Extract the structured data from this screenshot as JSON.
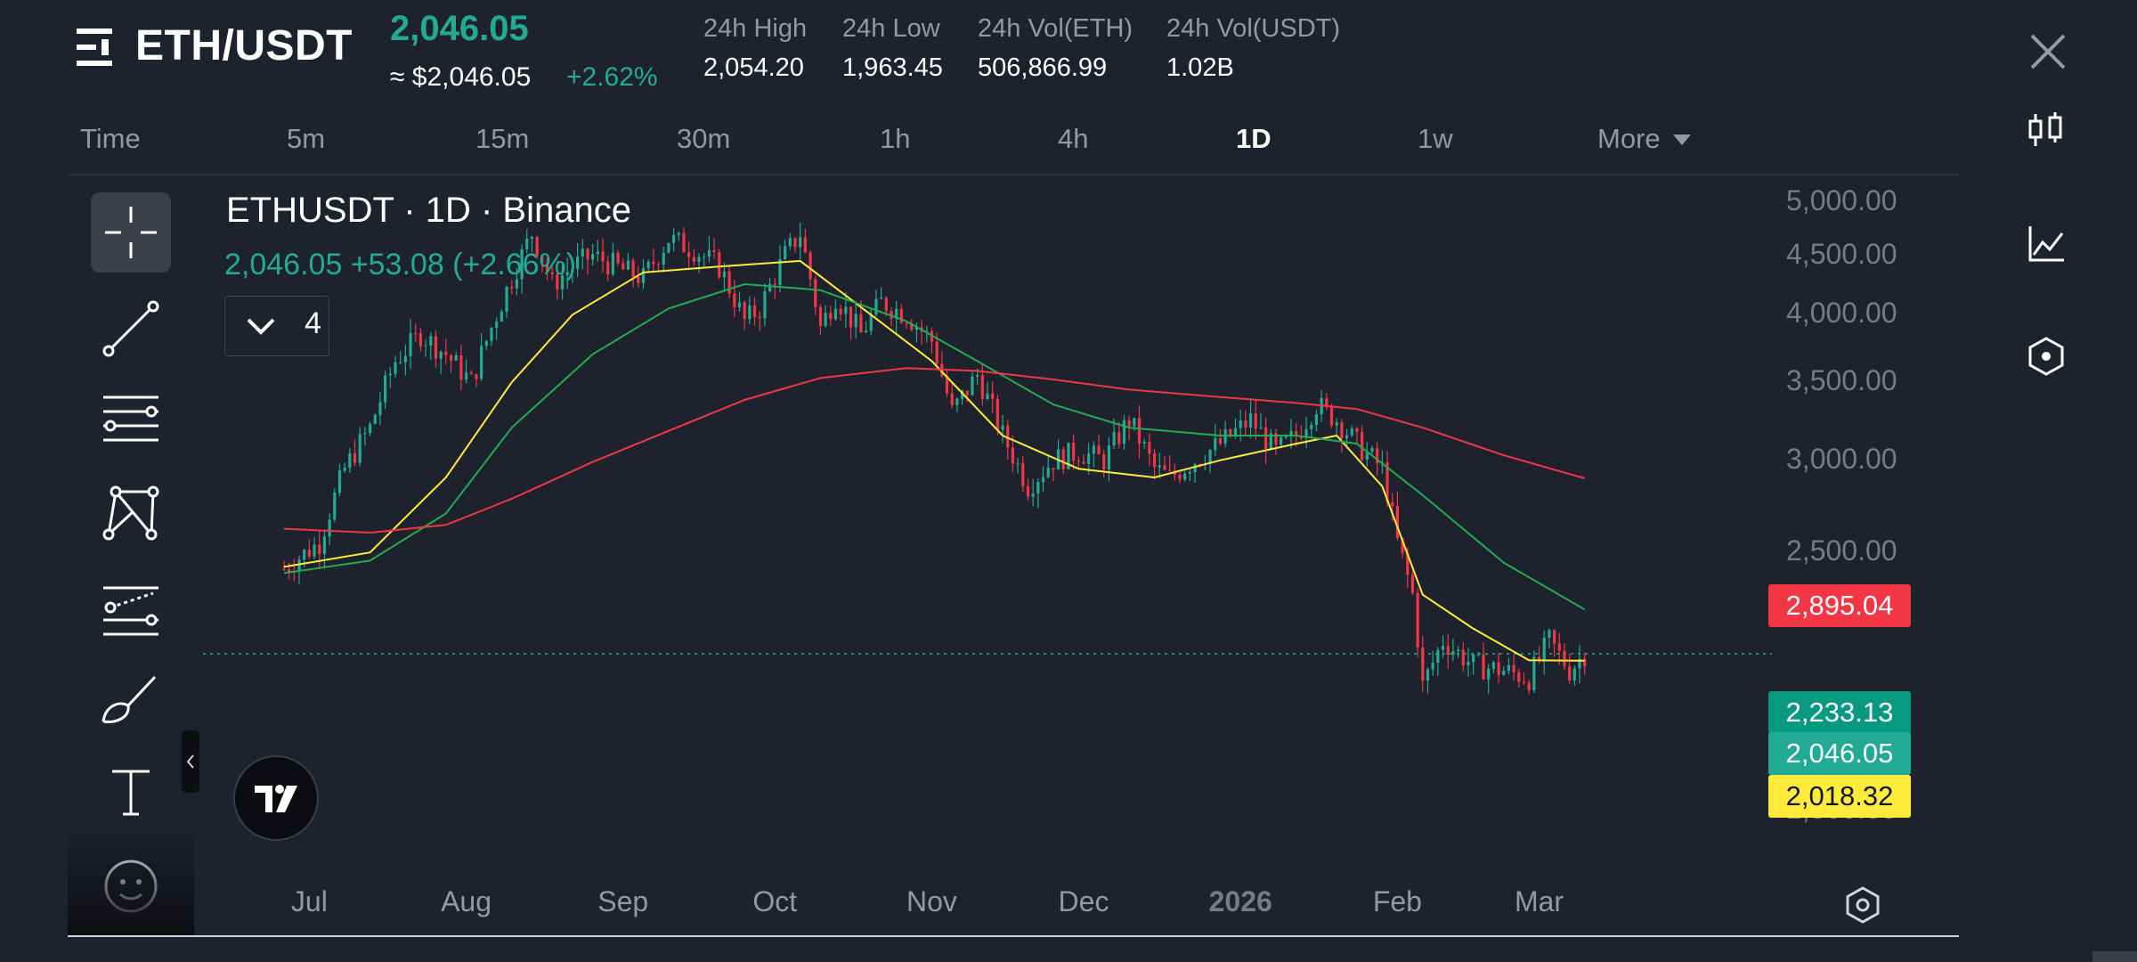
{
  "header": {
    "pair": "ETH/USDT",
    "price": "2,046.05",
    "price_usd": "≈ $2,046.05",
    "change": "+2.62%",
    "stats": [
      {
        "label": "24h High",
        "value": "2,054.20"
      },
      {
        "label": "24h Low",
        "value": "1,963.45"
      },
      {
        "label": "24h Vol(ETH)",
        "value": "506,866.99"
      },
      {
        "label": "24h Vol(USDT)",
        "value": "1.02B"
      }
    ]
  },
  "intervals": [
    "Time",
    "5m",
    "15m",
    "30m",
    "1h",
    "4h",
    "1D",
    "1w",
    "More"
  ],
  "active_interval": "1D",
  "chart": {
    "title": "ETHUSDT · 1D · Binance",
    "legend_price": "2,046.05  +53.08 (+2.66%)",
    "indicator_count": "4"
  },
  "toolbar": [
    "crosshair-tool",
    "trendline-tool",
    "fib-retracement-tool",
    "pattern-tool",
    "projection-tool",
    "brush-tool",
    "text-tool",
    "emoji-tool"
  ],
  "colors": {
    "up": "#22ab94",
    "down": "#f23645",
    "ma_short": "#ffeb3b",
    "ma_mid": "#22ab50",
    "ma_long": "#f23645",
    "background": "#1e222d"
  },
  "chart_data": {
    "type": "line",
    "title": "ETHUSDT · 1D · Binance",
    "y_ticks": [
      "5,000.00",
      "4,500.00",
      "4,000.00",
      "3,500.00",
      "3,000.00",
      "2,500.00",
      "1,500.00"
    ],
    "ylim": [
      1350,
      5150
    ],
    "x_ticks": [
      "Jul",
      "Aug",
      "Sep",
      "Oct",
      "Nov",
      "Dec",
      "2026",
      "Feb",
      "Mar"
    ],
    "x_tick_dates": [
      "2025-07-01",
      "2025-08-01",
      "2025-09-01",
      "2025-10-01",
      "2025-11-01",
      "2025-12-01",
      "2026-01-01",
      "2026-02-01",
      "2026-03-01"
    ],
    "grid": false,
    "price_series": {
      "dates": [
        "2025-06-26",
        "2025-07-03",
        "2025-07-08",
        "2025-07-13",
        "2025-07-18",
        "2025-07-23",
        "2025-07-28",
        "2025-08-02",
        "2025-08-05",
        "2025-08-10",
        "2025-08-14",
        "2025-08-18",
        "2025-08-22",
        "2025-08-26",
        "2025-09-01",
        "2025-09-05",
        "2025-09-10",
        "2025-09-15",
        "2025-09-20",
        "2025-09-25",
        "2025-09-28",
        "2025-10-03",
        "2025-10-06",
        "2025-10-10",
        "2025-10-13",
        "2025-10-18",
        "2025-10-22",
        "2025-10-27",
        "2025-11-01",
        "2025-11-05",
        "2025-11-10",
        "2025-11-15",
        "2025-11-20",
        "2025-11-25",
        "2025-11-30",
        "2025-12-05",
        "2025-12-10",
        "2025-12-15",
        "2025-12-18",
        "2025-12-23",
        "2025-12-28",
        "2026-01-03",
        "2026-01-08",
        "2026-01-12",
        "2026-01-16",
        "2026-01-20",
        "2026-01-24",
        "2026-01-29",
        "2026-02-01",
        "2026-02-04",
        "2026-02-06",
        "2026-02-10",
        "2026-02-16",
        "2026-02-22",
        "2026-02-27",
        "2026-03-03",
        "2026-03-07",
        "2026-03-10"
      ],
      "close": [
        2420,
        2550,
        2950,
        3200,
        3650,
        3850,
        3700,
        3500,
        3800,
        4300,
        4700,
        4250,
        4400,
        4500,
        4370,
        4300,
        4650,
        4550,
        4400,
        3950,
        4050,
        4500,
        4700,
        3900,
        4150,
        3850,
        4100,
        4000,
        3800,
        3300,
        3550,
        3150,
        2850,
        3000,
        3050,
        3000,
        3250,
        2950,
        2900,
        3000,
        3100,
        3250,
        3050,
        3150,
        3350,
        3250,
        3100,
        2950,
        2550,
        2300,
        1920,
        2100,
        2000,
        1980,
        1950,
        2100,
        1980,
        2046
      ]
    },
    "series": [
      {
        "key": "ma_short",
        "values_dates": [
          "2025-06-26",
          "2025-07-13",
          "2025-07-28",
          "2025-08-10",
          "2025-08-22",
          "2025-09-05",
          "2025-09-20",
          "2025-10-06",
          "2025-10-20",
          "2025-11-01",
          "2025-11-15",
          "2025-11-30",
          "2025-12-15",
          "2025-12-28",
          "2026-01-12",
          "2026-01-20",
          "2026-01-29",
          "2026-02-06",
          "2026-02-16",
          "2026-02-27",
          "2026-03-10"
        ],
        "values": [
          2430,
          2500,
          2900,
          3500,
          4000,
          4350,
          4400,
          4450,
          4000,
          3650,
          3150,
          2950,
          2900,
          3000,
          3100,
          3150,
          2850,
          2300,
          2150,
          2020,
          2018
        ]
      },
      {
        "key": "ma_mid",
        "values_dates": [
          "2025-06-26",
          "2025-07-13",
          "2025-07-28",
          "2025-08-10",
          "2025-08-26",
          "2025-09-10",
          "2025-09-25",
          "2025-10-10",
          "2025-10-27",
          "2025-11-10",
          "2025-11-25",
          "2025-12-10",
          "2025-12-28",
          "2026-01-12",
          "2026-01-24",
          "2026-02-06",
          "2026-02-22",
          "2026-03-10"
        ],
        "values": [
          2400,
          2460,
          2700,
          3200,
          3700,
          4050,
          4250,
          4200,
          3950,
          3650,
          3350,
          3200,
          3150,
          3150,
          3100,
          2800,
          2450,
          2233
        ]
      },
      {
        "key": "ma_long",
        "values_dates": [
          "2025-06-26",
          "2025-07-13",
          "2025-07-28",
          "2025-08-10",
          "2025-08-26",
          "2025-09-10",
          "2025-09-25",
          "2025-10-10",
          "2025-10-27",
          "2025-11-10",
          "2025-11-25",
          "2025-12-10",
          "2025-12-28",
          "2026-01-12",
          "2026-01-24",
          "2026-02-06",
          "2026-02-22",
          "2026-03-10"
        ],
        "values": [
          2620,
          2600,
          2640,
          2780,
          2990,
          3180,
          3380,
          3530,
          3600,
          3580,
          3520,
          3450,
          3400,
          3360,
          3320,
          3200,
          3030,
          2895
        ]
      }
    ],
    "price_labels": [
      {
        "value": "2,895.04",
        "color": "red"
      },
      {
        "value": "2,233.13",
        "color": "green"
      },
      {
        "value": "2,046.05",
        "color": "teal"
      },
      {
        "value": "2,018.32",
        "color": "yellow"
      }
    ],
    "last_price": 2046.05
  }
}
